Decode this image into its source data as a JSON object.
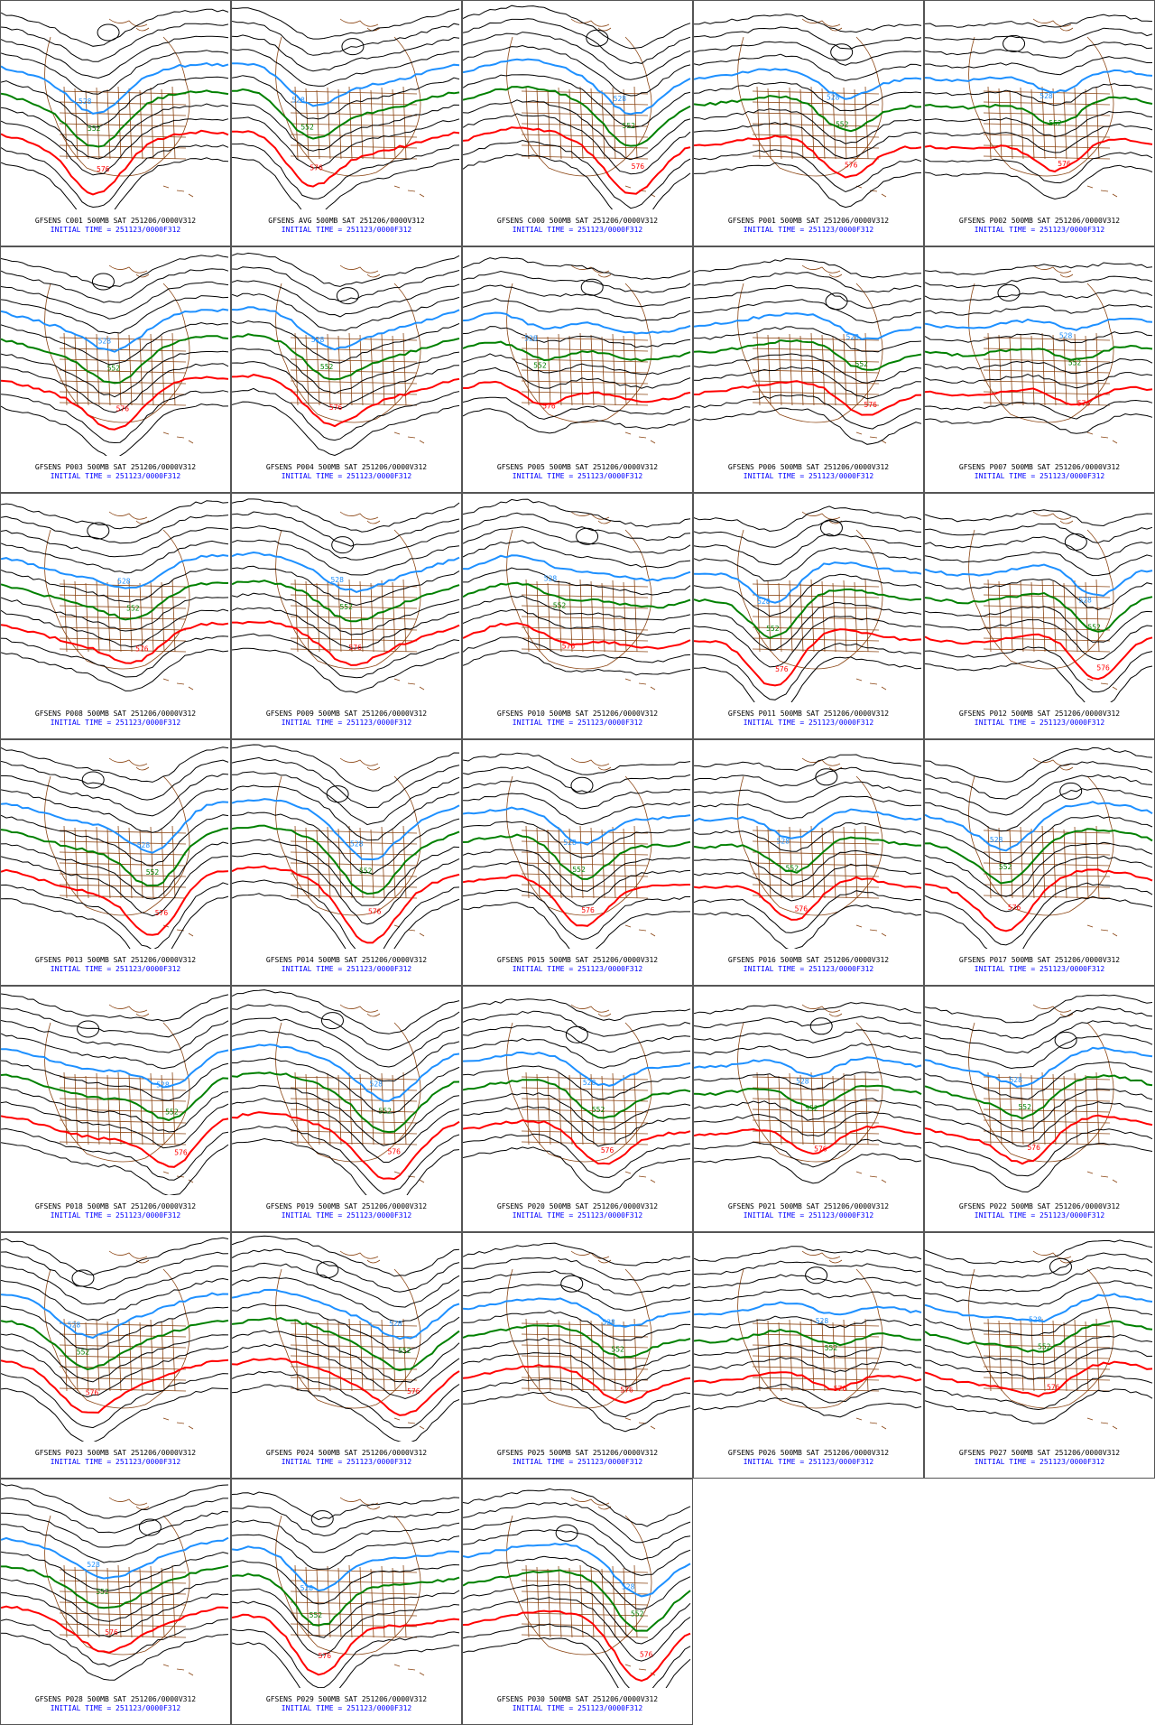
{
  "colors": {
    "contour_black": "#000000",
    "contour_blue": "#1e90ff",
    "contour_green": "#008000",
    "contour_red": "#ff0000",
    "geography_brown": "#8b4513",
    "caption_black": "#000000",
    "caption_blue": "#0000ff"
  },
  "contour_labels": {
    "blue": "528",
    "green": "552",
    "red": "576"
  },
  "panels": [
    {
      "id": "C001",
      "line1": "GFSENS C001 500MB SAT 251206/0000V312",
      "line2": "INITIAL TIME = 251123/0000F312"
    },
    {
      "id": "AVG",
      "line1": "GFSENS AVG 500MB SAT 251206/0000V312",
      "line2": "INITIAL TIME = 251123/0000F312"
    },
    {
      "id": "C000",
      "line1": "GFSENS C000 500MB SAT 251206/0000V312",
      "line2": "INITIAL TIME = 251123/0000F312"
    },
    {
      "id": "P001",
      "line1": "GFSENS P001 500MB SAT 251206/0000V312",
      "line2": "INITIAL TIME = 251123/0000F312"
    },
    {
      "id": "P002",
      "line1": "GFSENS P002 500MB SAT 251206/0000V312",
      "line2": "INITIAL TIME = 251123/0000F312"
    },
    {
      "id": "P003",
      "line1": "GFSENS P003 500MB SAT 251206/0000V312",
      "line2": "INITIAL TIME = 251123/0000F312"
    },
    {
      "id": "P004",
      "line1": "GFSENS P004 500MB SAT 251206/0000V312",
      "line2": "INITIAL TIME = 251123/0000F312"
    },
    {
      "id": "P005",
      "line1": "GFSENS P005 500MB SAT 251206/0000V312",
      "line2": "INITIAL TIME = 251123/0000F312"
    },
    {
      "id": "P006",
      "line1": "GFSENS P006 500MB SAT 251206/0000V312",
      "line2": "INITIAL TIME = 251123/0000F312"
    },
    {
      "id": "P007",
      "line1": "GFSENS P007 500MB SAT 251206/0000V312",
      "line2": "INITIAL TIME = 251123/0000F312"
    },
    {
      "id": "P008",
      "line1": "GFSENS P008 500MB SAT 251206/0000V312",
      "line2": "INITIAL TIME = 251123/0000F312"
    },
    {
      "id": "P009",
      "line1": "GFSENS P009 500MB SAT 251206/0000V312",
      "line2": "INITIAL TIME = 251123/0000F312"
    },
    {
      "id": "P010",
      "line1": "GFSENS P010 500MB SAT 251206/0000V312",
      "line2": "INITIAL TIME = 251123/0000F312"
    },
    {
      "id": "P011",
      "line1": "GFSENS P011 500MB SAT 251206/0000V312",
      "line2": "INITIAL TIME = 251123/0000F312"
    },
    {
      "id": "P012",
      "line1": "GFSENS P012 500MB SAT 251206/0000V312",
      "line2": "INITIAL TIME = 251123/0000F312"
    },
    {
      "id": "P013",
      "line1": "GFSENS P013 500MB SAT 251206/0000V312",
      "line2": "INITIAL TIME = 251123/0000F312"
    },
    {
      "id": "P014",
      "line1": "GFSENS P014 500MB SAT 251206/0000V312",
      "line2": "INITIAL TIME = 251123/0000F312"
    },
    {
      "id": "P015",
      "line1": "GFSENS P015 500MB SAT 251206/0000V312",
      "line2": "INITIAL TIME = 251123/0000F312"
    },
    {
      "id": "P016",
      "line1": "GFSENS P016 500MB SAT 251206/0000V312",
      "line2": "INITIAL TIME = 251123/0000F312"
    },
    {
      "id": "P017",
      "line1": "GFSENS P017 500MB SAT 251206/0000V312",
      "line2": "INITIAL TIME = 251123/0000F312"
    },
    {
      "id": "P018",
      "line1": "GFSENS P018 500MB SAT 251206/0000V312",
      "line2": "INITIAL TIME = 251123/0000F312"
    },
    {
      "id": "P019",
      "line1": "GFSENS P019 500MB SAT 251206/0000V312",
      "line2": "INITIAL TIME = 251123/0000F312"
    },
    {
      "id": "P020",
      "line1": "GFSENS P020 500MB SAT 251206/0000V312",
      "line2": "INITIAL TIME = 251123/0000F312"
    },
    {
      "id": "P021",
      "line1": "GFSENS P021 500MB SAT 251206/0000V312",
      "line2": "INITIAL TIME = 251123/0000F312"
    },
    {
      "id": "P022",
      "line1": "GFSENS P022 500MB SAT 251206/0000V312",
      "line2": "INITIAL TIME = 251123/0000F312"
    },
    {
      "id": "P023",
      "line1": "GFSENS P023 500MB SAT 251206/0000V312",
      "line2": "INITIAL TIME = 251123/0000F312"
    },
    {
      "id": "P024",
      "line1": "GFSENS P024 500MB SAT 251206/0000V312",
      "line2": "INITIAL TIME = 251123/0000F312"
    },
    {
      "id": "P025",
      "line1": "GFSENS P025 500MB SAT 251206/0000V312",
      "line2": "INITIAL TIME = 251123/0000F312"
    },
    {
      "id": "P026",
      "line1": "GFSENS P026 500MB SAT 251206/0000V312",
      "line2": "INITIAL TIME = 251123/0000F312"
    },
    {
      "id": "P027",
      "line1": "GFSENS P027 500MB SAT 251206/0000V312",
      "line2": "INITIAL TIME = 251123/0000F312"
    },
    {
      "id": "P028",
      "line1": "GFSENS P028 500MB SAT 251206/0000V312",
      "line2": "INITIAL TIME = 251123/0000F312"
    },
    {
      "id": "P029",
      "line1": "GFSENS P029 500MB SAT 251206/0000V312",
      "line2": "INITIAL TIME = 251123/0000F312"
    },
    {
      "id": "P030",
      "line1": "GFSENS P030 500MB SAT 251206/0000V312",
      "line2": "INITIAL TIME = 251123/0000F312"
    }
  ]
}
